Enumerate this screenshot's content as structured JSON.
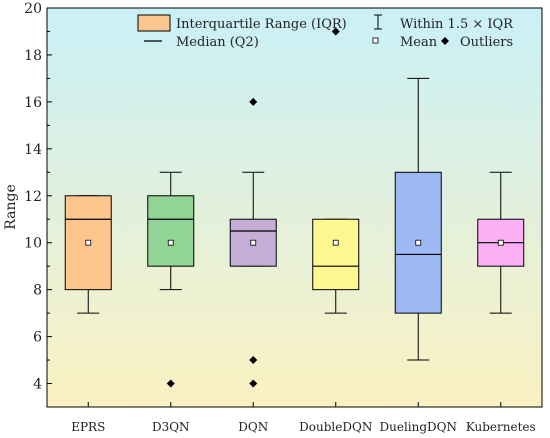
{
  "chart_data": {
    "type": "box",
    "ylabel": "Range",
    "xlabel": "",
    "ylim": [
      3,
      20
    ],
    "yticks": [
      4,
      6,
      8,
      10,
      12,
      14,
      16,
      18,
      20
    ],
    "categories": [
      "EPRS",
      "D3QN",
      "DQN",
      "DoubleDQN",
      "DuelingDQN",
      "Kubernetes"
    ],
    "series": [
      {
        "category": "EPRS",
        "whisker_low": 7,
        "q1": 8,
        "median": 11,
        "q3": 12,
        "whisker_high": 12,
        "mean": 10,
        "outliers": [],
        "color": "#fcc68e"
      },
      {
        "category": "D3QN",
        "whisker_low": 8,
        "q1": 9,
        "median": 11,
        "q3": 12,
        "whisker_high": 13,
        "mean": 10,
        "outliers": [
          4
        ],
        "color": "#92d495"
      },
      {
        "category": "DQN",
        "whisker_low": 9,
        "q1": 9,
        "median": 10.5,
        "q3": 11,
        "whisker_high": 13,
        "mean": 10,
        "outliers": [
          4,
          5,
          16
        ],
        "color": "#c4aed8"
      },
      {
        "category": "DoubleDQN",
        "whisker_low": 7,
        "q1": 8,
        "median": 9,
        "q3": 11,
        "whisker_high": 11,
        "mean": 10,
        "outliers": [
          19
        ],
        "color": "#fdf790"
      },
      {
        "category": "DuelingDQN",
        "whisker_low": 5,
        "q1": 7,
        "median": 9.5,
        "q3": 13,
        "whisker_high": 17,
        "mean": 10,
        "outliers": [],
        "color": "#9cb9f4"
      },
      {
        "category": "Kubernetes",
        "whisker_low": 7,
        "q1": 9,
        "median": 10,
        "q3": 11,
        "whisker_high": 13,
        "mean": 10,
        "outliers": [],
        "color": "#fbb0f6"
      }
    ],
    "legend": {
      "placement": "top",
      "items": [
        {
          "key": "iqr",
          "label": "Interquartile Range (IQR)"
        },
        {
          "key": "whisker",
          "label": "Within 1.5 × IQR"
        },
        {
          "key": "median",
          "label": "Median (Q2)"
        },
        {
          "key": "mean",
          "label": "Mean"
        },
        {
          "key": "outlier",
          "label": "Outliers"
        }
      ],
      "swatch_color": "#fcc68e"
    },
    "background_gradient": [
      "#c9f0f7",
      "#fbf1c2"
    ]
  }
}
